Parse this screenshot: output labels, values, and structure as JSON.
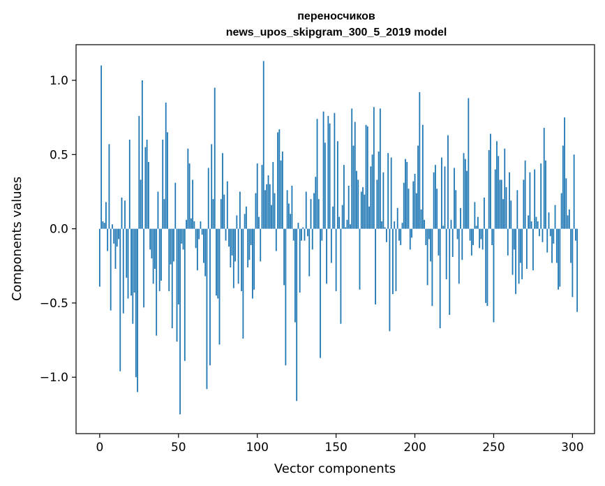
{
  "chart_data": {
    "type": "bar",
    "title_line1": "переносчиков",
    "title_line2": "news_upos_skipgram_300_5_2019 model",
    "xlabel": "Vector components",
    "ylabel": "Components values",
    "xlim": [
      -15,
      314
    ],
    "ylim": [
      -1.38,
      1.24
    ],
    "xticks": [
      0,
      50,
      100,
      150,
      200,
      250,
      300
    ],
    "xtick_labels": [
      "0",
      "50",
      "100",
      "150",
      "200",
      "250",
      "300"
    ],
    "yticks": [
      -1.0,
      -0.5,
      0.0,
      0.5,
      1.0
    ],
    "ytick_labels": [
      "−1.0",
      "−0.5",
      "0.0",
      "0.5",
      "1.0"
    ],
    "bar_color": "#1f77b4",
    "values": [
      -0.39,
      1.1,
      0.05,
      0.04,
      0.18,
      -0.15,
      0.57,
      -0.55,
      0.03,
      -0.1,
      -0.27,
      -0.12,
      -0.07,
      -0.96,
      0.21,
      -0.57,
      0.19,
      -0.33,
      -0.47,
      0.6,
      -0.45,
      -0.64,
      -0.43,
      -1.0,
      -1.1,
      0.76,
      0.33,
      1.0,
      -0.53,
      0.55,
      0.6,
      0.45,
      -0.14,
      -0.2,
      -0.37,
      -0.27,
      -0.72,
      0.25,
      -0.42,
      -0.35,
      0.6,
      0.2,
      0.85,
      0.65,
      -0.42,
      -0.24,
      -0.67,
      -0.22,
      0.31,
      -0.76,
      -0.51,
      -1.25,
      -0.1,
      -0.14,
      -0.89,
      0.06,
      0.54,
      0.44,
      0.07,
      0.33,
      0.05,
      -0.13,
      -0.28,
      -0.07,
      0.05,
      -0.04,
      -0.23,
      -0.32,
      -1.08,
      0.41,
      -0.92,
      0.57,
      0.2,
      0.95,
      -0.45,
      -0.47,
      -0.78,
      0.2,
      0.51,
      0.23,
      -0.08,
      0.32,
      -0.12,
      -0.26,
      -0.18,
      -0.4,
      -0.22,
      0.09,
      -0.37,
      0.25,
      -0.42,
      -0.74,
      0.1,
      0.15,
      -0.26,
      -0.21,
      -0.11,
      -0.47,
      -0.41,
      0.24,
      0.44,
      0.08,
      -0.22,
      0.43,
      1.13,
      0.26,
      0.3,
      0.36,
      0.3,
      0.16,
      0.45,
      0.24,
      -0.15,
      0.65,
      0.67,
      0.46,
      0.52,
      -0.38,
      -0.92,
      0.26,
      0.17,
      0.1,
      0.29,
      -0.08,
      -0.63,
      -1.16,
      0.04,
      -0.43,
      -0.08,
      0.01,
      -0.08,
      0.25,
      -0.05,
      -0.32,
      0.2,
      -0.14,
      0.24,
      0.35,
      0.74,
      0.2,
      -0.87,
      -0.08,
      0.79,
      0.58,
      -0.37,
      0.76,
      0.71,
      -0.23,
      0.15,
      0.78,
      -0.42,
      0.59,
      0.08,
      -0.64,
      0.16,
      0.43,
      0.01,
      0.06,
      0.29,
      0.03,
      0.81,
      0.56,
      0.72,
      0.39,
      0.33,
      -0.41,
      0.25,
      0.28,
      0.23,
      0.7,
      0.69,
      0.15,
      0.42,
      0.5,
      0.82,
      -0.51,
      0.33,
      0.52,
      0.81,
      0.05,
      0.38,
      0.01,
      -0.09,
      0.51,
      -0.69,
      0.48,
      -0.44,
      0.05,
      -0.42,
      0.14,
      -0.08,
      -0.11,
      0.04,
      0.31,
      0.47,
      0.45,
      0.27,
      -0.14,
      -0.06,
      0.32,
      0.37,
      0.24,
      0.56,
      0.92,
      0.13,
      0.7,
      0.06,
      -0.11,
      -0.38,
      -0.07,
      -0.22,
      -0.52,
      0.38,
      0.43,
      0.27,
      -0.18,
      -0.67,
      0.48,
      0.02,
      0.42,
      -0.34,
      0.63,
      -0.58,
      0.06,
      -0.19,
      0.41,
      0.26,
      -0.07,
      -0.37,
      0.14,
      -0.21,
      0.51,
      0.47,
      0.39,
      0.88,
      -0.08,
      -0.18,
      -0.11,
      0.18,
      0.02,
      0.08,
      -0.13,
      -0.07,
      -0.14,
      0.21,
      -0.5,
      -0.52,
      0.53,
      0.64,
      -0.11,
      -0.63,
      0.4,
      0.59,
      0.49,
      0.33,
      0.33,
      0.2,
      0.54,
      0.28,
      -0.18,
      0.38,
      0.19,
      -0.31,
      -0.14,
      -0.44,
      0.26,
      -0.37,
      -0.23,
      -0.34,
      0.33,
      0.46,
      -0.27,
      0.09,
      0.38,
      0.05,
      -0.28,
      0.4,
      0.08,
      0.05,
      -0.05,
      0.44,
      -0.09,
      0.68,
      0.46,
      -0.16,
      0.11,
      -0.05,
      -0.23,
      -0.1,
      0.16,
      -0.23,
      -0.41,
      -0.39,
      0.24,
      0.56,
      0.75,
      0.34,
      0.09,
      0.13,
      -0.23,
      -0.46,
      0.5,
      -0.08,
      -0.56
    ]
  }
}
